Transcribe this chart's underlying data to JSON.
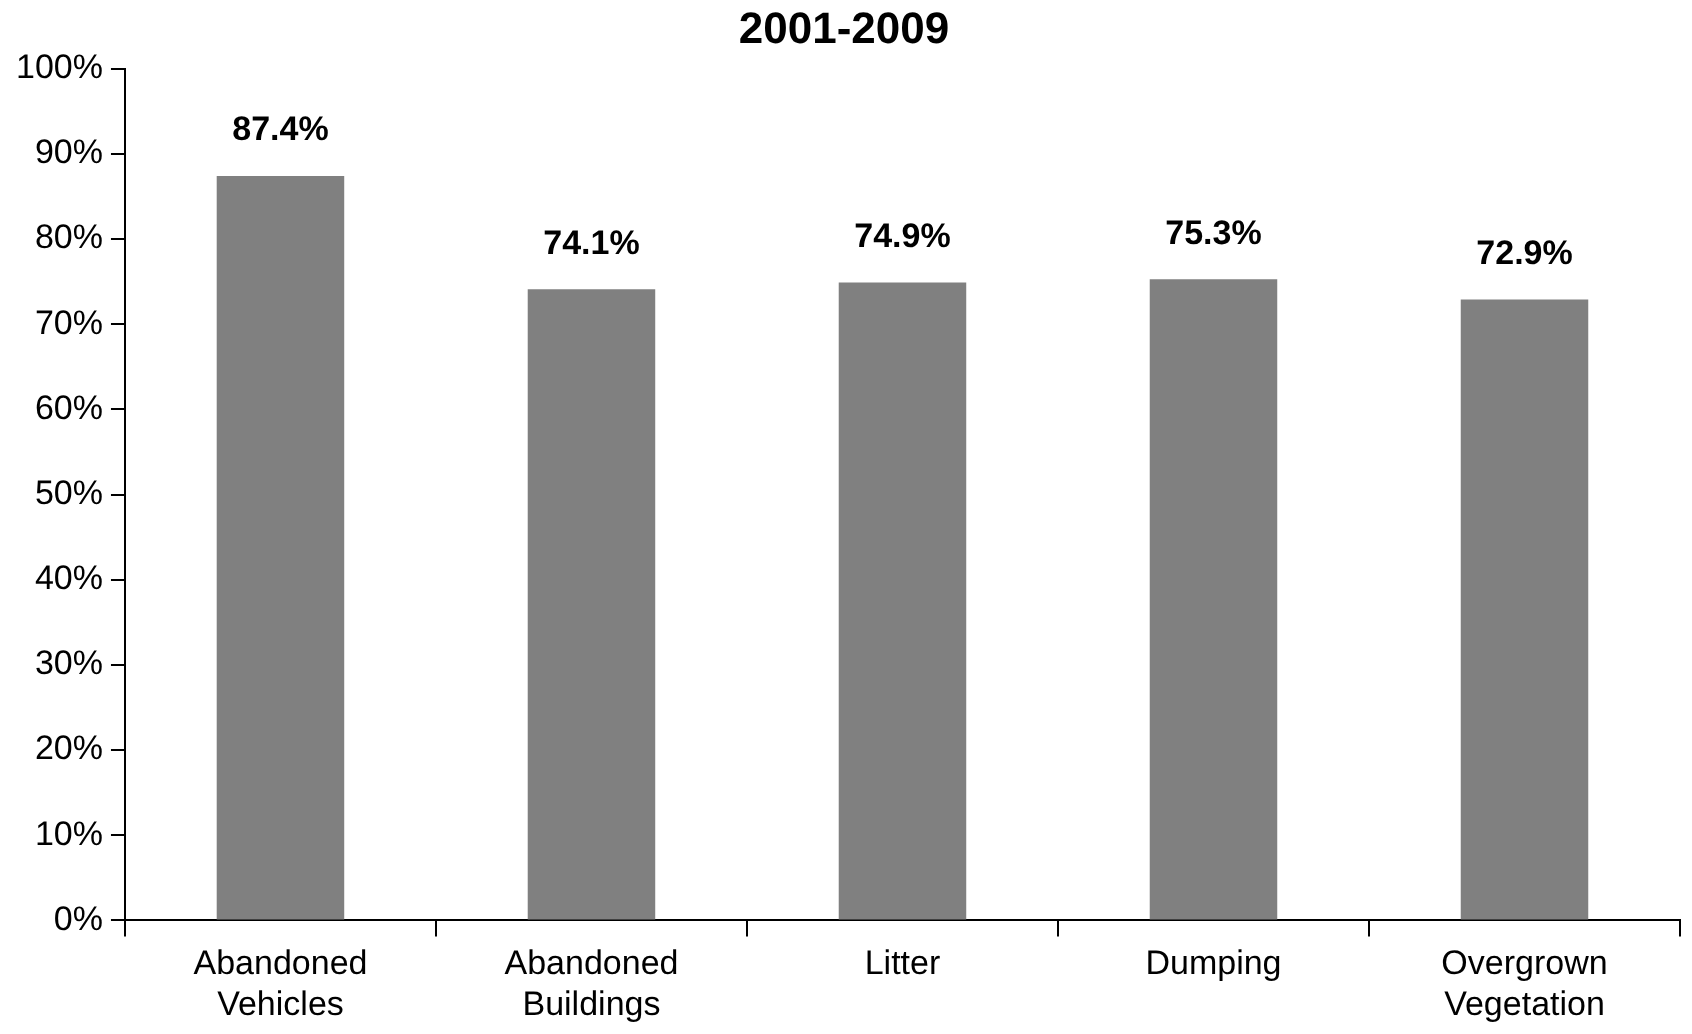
{
  "chart_data": {
    "type": "bar",
    "title": "2001-2009",
    "categories": [
      "Abandoned Vehicles",
      "Abandoned Buildings",
      "Litter",
      "Dumping",
      "Overgrown Vegetation"
    ],
    "values": [
      87.4,
      74.1,
      74.9,
      75.3,
      72.9
    ],
    "color": "#808080",
    "value_labels": [
      "87.4%",
      "74.1%",
      "74.9%",
      "75.3%",
      "72.9%"
    ],
    "ylim": [
      0,
      100
    ],
    "yticks": [
      {
        "value": 0,
        "label": "0%"
      },
      {
        "value": 10,
        "label": "10%"
      },
      {
        "value": 20,
        "label": "20%"
      },
      {
        "value": 30,
        "label": "30%"
      },
      {
        "value": 40,
        "label": "40%"
      },
      {
        "value": 50,
        "label": "50%"
      },
      {
        "value": 60,
        "label": "60%"
      },
      {
        "value": 70,
        "label": "70%"
      },
      {
        "value": 80,
        "label": "80%"
      },
      {
        "value": 90,
        "label": "90%"
      },
      {
        "value": 100,
        "label": "100%"
      }
    ],
    "grid": false,
    "legend": false
  }
}
